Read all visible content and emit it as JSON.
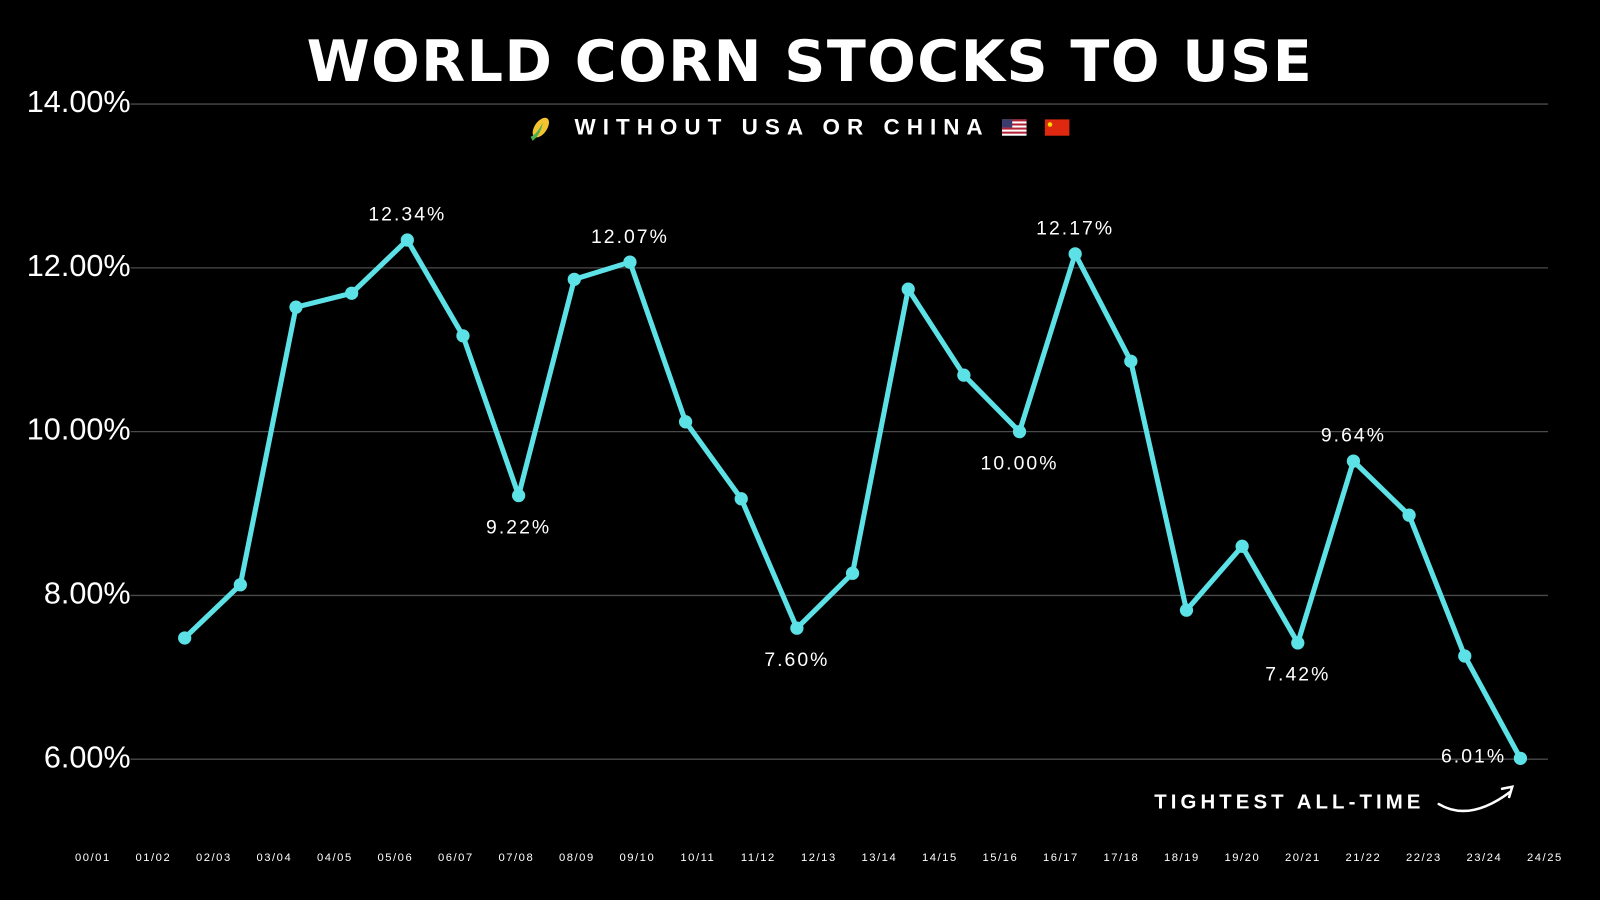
{
  "chart_data": {
    "type": "line",
    "title": "WORLD CORN STOCKS TO USE",
    "subtitle": "WITHOUT USA OR CHINA",
    "annotation": "TIGHTEST ALL-TIME",
    "categories": [
      "00/01",
      "01/02",
      "02/03",
      "03/04",
      "04/05",
      "05/06",
      "06/07",
      "07/08",
      "08/09",
      "09/10",
      "10/11",
      "11/12",
      "12/13",
      "13/14",
      "14/15",
      "15/16",
      "16/17",
      "17/18",
      "18/19",
      "19/20",
      "20/21",
      "21/22",
      "22/23",
      "23/24",
      "24/25"
    ],
    "series": [
      {
        "name": "Stocks to use",
        "color": "#5ce1e6",
        "values": [
          7.48,
          8.13,
          11.52,
          11.69,
          12.34,
          11.17,
          9.22,
          11.86,
          12.07,
          10.12,
          9.18,
          7.6,
          8.27,
          11.74,
          10.69,
          10.0,
          12.17,
          10.86,
          7.82,
          8.6,
          7.42,
          9.64,
          8.98,
          7.26,
          6.01
        ],
        "value_labels": [
          null,
          null,
          null,
          null,
          "12.34%",
          null,
          "9.22%",
          null,
          "12.07%",
          null,
          null,
          "7.60%",
          null,
          null,
          null,
          "10.00%",
          "12.17%",
          null,
          null,
          null,
          "7.42%",
          "9.64%",
          null,
          null,
          "6.01%"
        ]
      }
    ],
    "ylim": [
      6,
      14
    ],
    "yticks": [
      {
        "value": 6,
        "label": "6.00%"
      },
      {
        "value": 8,
        "label": "8.00%"
      },
      {
        "value": 10,
        "label": "10.00%"
      },
      {
        "value": 12,
        "label": "12.00%"
      },
      {
        "value": 14,
        "label": "14.00%"
      }
    ],
    "grid": true
  }
}
